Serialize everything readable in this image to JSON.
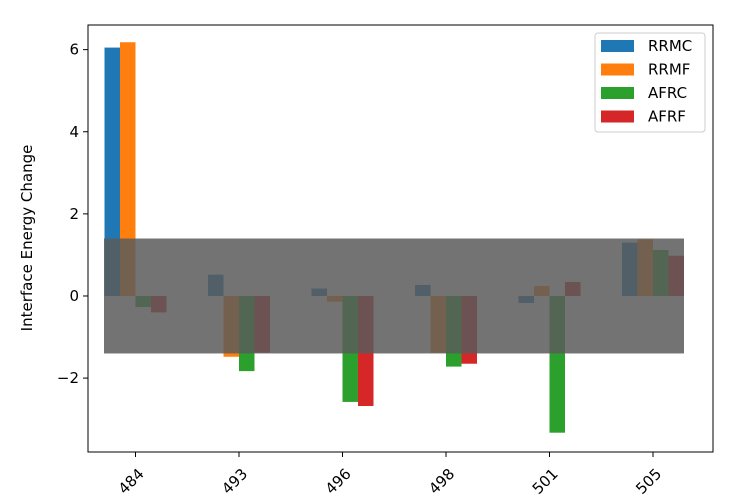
{
  "chart_data": {
    "type": "bar",
    "title": "",
    "xlabel": "",
    "ylabel": "Interface Energy Change",
    "categories": [
      "484",
      "493",
      "496",
      "498",
      "501",
      "505"
    ],
    "ylim": [
      -3.8,
      6.6
    ],
    "yticks": [
      -2,
      0,
      2,
      4,
      6
    ],
    "ytick_labels": [
      "−2",
      "0",
      "2",
      "4",
      "6"
    ],
    "legend_position": "top-right",
    "band": {
      "from": -1.4,
      "to": 1.4,
      "color": "#5a5a5a",
      "opacity": 0.85
    },
    "series": [
      {
        "name": "RRMC",
        "color": "#1f77b4",
        "values": [
          6.05,
          0.52,
          0.18,
          0.27,
          -0.17,
          1.3
        ]
      },
      {
        "name": "RRMF",
        "color": "#ff7f0e",
        "values": [
          6.18,
          -1.48,
          -0.14,
          -1.38,
          0.24,
          1.38
        ]
      },
      {
        "name": "AFRC",
        "color": "#2ca02c",
        "values": [
          -0.27,
          -1.83,
          -2.58,
          -1.72,
          -3.33,
          1.12
        ]
      },
      {
        "name": "AFRF",
        "color": "#d62728",
        "values": [
          -0.4,
          -1.38,
          -2.68,
          -1.65,
          0.34,
          0.98
        ]
      }
    ]
  }
}
